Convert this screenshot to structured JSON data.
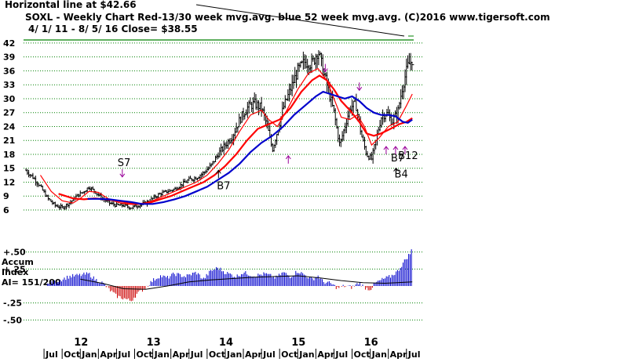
{
  "header": {
    "line1": "Horizontal line at $42.66",
    "line2": "SOXL - Weekly Chart Red-13/30 week mvg.avg. blue 52 week mvg.avg. (C)2016 www.tigersoft.com",
    "line3": "4/ 1/ 11 - 8/ 5/ 16 Close= $38.55"
  },
  "colors": {
    "price": "#000000",
    "ma13": "#ff0000",
    "ma30": "#ff0000",
    "ma52": "#0000cc",
    "grid": "#008000",
    "hline": "#008000",
    "accum_pos": "#0000cc",
    "accum_neg": "#cc0000",
    "buy_arrow": "#000000",
    "sell_arrow": "#990099"
  },
  "chart_data": [
    {
      "type": "ohlc",
      "title": "SOXL - Weekly Chart",
      "ylim": [
        6,
        43
      ],
      "yticks": [
        6,
        9,
        12,
        15,
        18,
        21,
        24,
        27,
        30,
        33,
        36,
        39,
        42
      ],
      "horizontal_line": 42.66,
      "grid": true,
      "x_range": [
        2011.25,
        2016.6
      ],
      "years": [
        "12",
        "13",
        "14",
        "15",
        "16"
      ],
      "months": [
        "Jul",
        "Oct",
        "Jan",
        "Apr",
        "Jul",
        "Oct",
        "Jan",
        "Apr",
        "Jul",
        "Oct",
        "Jan",
        "Apr",
        "Jul",
        "Oct",
        "Jan",
        "Apr",
        "Jul",
        "Oct",
        "Jan",
        "Apr",
        "Jul"
      ],
      "price_points": [
        [
          2011.25,
          14.5
        ],
        [
          2011.35,
          13.0
        ],
        [
          2011.45,
          11.0
        ],
        [
          2011.55,
          8.5
        ],
        [
          2011.65,
          7.0
        ],
        [
          2011.75,
          6.5
        ],
        [
          2011.85,
          7.5
        ],
        [
          2011.95,
          9.0
        ],
        [
          2012.05,
          10.0
        ],
        [
          2012.12,
          11.0
        ],
        [
          2012.2,
          10.0
        ],
        [
          2012.3,
          8.5
        ],
        [
          2012.4,
          7.5
        ],
        [
          2012.5,
          7.0
        ],
        [
          2012.6,
          7.0
        ],
        [
          2012.7,
          6.5
        ],
        [
          2012.8,
          7.0
        ],
        [
          2012.9,
          7.5
        ],
        [
          2013.0,
          8.5
        ],
        [
          2013.1,
          9.5
        ],
        [
          2013.2,
          10.0
        ],
        [
          2013.3,
          10.5
        ],
        [
          2013.4,
          11.5
        ],
        [
          2013.5,
          12.5
        ],
        [
          2013.6,
          13.0
        ],
        [
          2013.7,
          14.0
        ],
        [
          2013.8,
          15.5
        ],
        [
          2013.9,
          18.0
        ],
        [
          2014.0,
          20.0
        ],
        [
          2014.1,
          22.0
        ],
        [
          2014.2,
          25.5
        ],
        [
          2014.3,
          28.0
        ],
        [
          2014.4,
          29.0
        ],
        [
          2014.5,
          28.0
        ],
        [
          2014.58,
          24.0
        ],
        [
          2014.65,
          19.0
        ],
        [
          2014.72,
          23.0
        ],
        [
          2014.8,
          28.0
        ],
        [
          2014.9,
          32.0
        ],
        [
          2015.0,
          36.0
        ],
        [
          2015.1,
          38.0
        ],
        [
          2015.2,
          37.5
        ],
        [
          2015.28,
          40.5
        ],
        [
          2015.35,
          36.0
        ],
        [
          2015.42,
          32.0
        ],
        [
          2015.5,
          27.0
        ],
        [
          2015.58,
          20.0
        ],
        [
          2015.65,
          24.0
        ],
        [
          2015.72,
          28.0
        ],
        [
          2015.8,
          29.0
        ],
        [
          2015.88,
          22.0
        ],
        [
          2015.95,
          18.0
        ],
        [
          2016.02,
          17.0
        ],
        [
          2016.08,
          21.0
        ],
        [
          2016.15,
          26.0
        ],
        [
          2016.22,
          27.0
        ],
        [
          2016.3,
          25.0
        ],
        [
          2016.38,
          27.0
        ],
        [
          2016.45,
          33.0
        ],
        [
          2016.52,
          37.0
        ],
        [
          2016.58,
          38.55
        ]
      ],
      "series": [
        {
          "name": "13 week mvg.avg.",
          "color": "#ff0000",
          "points": [
            [
              2011.45,
              13.5
            ],
            [
              2011.6,
              10.0
            ],
            [
              2011.75,
              8.0
            ],
            [
              2011.9,
              7.5
            ],
            [
              2012.0,
              8.5
            ],
            [
              2012.12,
              10.0
            ],
            [
              2012.25,
              9.8
            ],
            [
              2012.4,
              8.3
            ],
            [
              2012.55,
              7.5
            ],
            [
              2012.7,
              7.2
            ],
            [
              2012.85,
              7.3
            ],
            [
              2013.0,
              8.0
            ],
            [
              2013.15,
              9.0
            ],
            [
              2013.3,
              10.0
            ],
            [
              2013.45,
              11.0
            ],
            [
              2013.6,
              12.0
            ],
            [
              2013.75,
              13.5
            ],
            [
              2013.9,
              16.0
            ],
            [
              2014.05,
              19.0
            ],
            [
              2014.2,
              23.0
            ],
            [
              2014.35,
              26.5
            ],
            [
              2014.5,
              27.5
            ],
            [
              2014.6,
              25.5
            ],
            [
              2014.72,
              24.0
            ],
            [
              2014.85,
              27.5
            ],
            [
              2015.0,
              32.0
            ],
            [
              2015.15,
              35.5
            ],
            [
              2015.28,
              36.5
            ],
            [
              2015.4,
              34.0
            ],
            [
              2015.5,
              30.0
            ],
            [
              2015.6,
              26.0
            ],
            [
              2015.72,
              25.5
            ],
            [
              2015.82,
              26.5
            ],
            [
              2015.92,
              24.0
            ],
            [
              2016.02,
              20.0
            ],
            [
              2016.12,
              21.5
            ],
            [
              2016.25,
              24.0
            ],
            [
              2016.38,
              25.0
            ],
            [
              2016.5,
              28.5
            ],
            [
              2016.58,
              31.0
            ]
          ]
        },
        {
          "name": "30 week mvg.avg.",
          "color": "#ff0000",
          "points": [
            [
              2011.7,
              9.5
            ],
            [
              2011.9,
              8.5
            ],
            [
              2012.05,
              8.3
            ],
            [
              2012.2,
              8.5
            ],
            [
              2012.35,
              8.3
            ],
            [
              2012.5,
              8.0
            ],
            [
              2012.65,
              7.6
            ],
            [
              2012.8,
              7.3
            ],
            [
              2012.95,
              7.5
            ],
            [
              2013.1,
              8.3
            ],
            [
              2013.25,
              9.0
            ],
            [
              2013.4,
              10.0
            ],
            [
              2013.55,
              11.0
            ],
            [
              2013.7,
              12.0
            ],
            [
              2013.85,
              13.5
            ],
            [
              2014.0,
              15.5
            ],
            [
              2014.15,
              18.0
            ],
            [
              2014.3,
              21.0
            ],
            [
              2014.45,
              23.5
            ],
            [
              2014.6,
              24.5
            ],
            [
              2014.75,
              25.5
            ],
            [
              2014.9,
              28.0
            ],
            [
              2015.05,
              31.5
            ],
            [
              2015.2,
              34.0
            ],
            [
              2015.3,
              35.0
            ],
            [
              2015.4,
              34.0
            ],
            [
              2015.5,
              32.0
            ],
            [
              2015.6,
              29.5
            ],
            [
              2015.72,
              27.5
            ],
            [
              2015.85,
              25.0
            ],
            [
              2015.95,
              22.5
            ],
            [
              2016.05,
              22.0
            ],
            [
              2016.15,
              22.5
            ],
            [
              2016.28,
              23.5
            ],
            [
              2016.4,
              24.5
            ],
            [
              2016.5,
              25.0
            ],
            [
              2016.58,
              25.8
            ]
          ]
        },
        {
          "name": "52 week mvg.avg.",
          "color": "#0000cc",
          "points": [
            [
              2012.1,
              8.4
            ],
            [
              2012.25,
              8.4
            ],
            [
              2012.4,
              8.3
            ],
            [
              2012.55,
              8.0
            ],
            [
              2012.7,
              7.7
            ],
            [
              2012.85,
              7.3
            ],
            [
              2013.0,
              7.3
            ],
            [
              2013.15,
              7.7
            ],
            [
              2013.3,
              8.3
            ],
            [
              2013.45,
              9.0
            ],
            [
              2013.6,
              10.0
            ],
            [
              2013.75,
              11.0
            ],
            [
              2013.9,
              12.5
            ],
            [
              2014.05,
              14.0
            ],
            [
              2014.2,
              16.0
            ],
            [
              2014.35,
              18.5
            ],
            [
              2014.5,
              20.5
            ],
            [
              2014.65,
              22.0
            ],
            [
              2014.8,
              24.0
            ],
            [
              2014.95,
              26.5
            ],
            [
              2015.1,
              28.5
            ],
            [
              2015.25,
              30.5
            ],
            [
              2015.35,
              31.5
            ],
            [
              2015.45,
              31.0
            ],
            [
              2015.55,
              30.5
            ],
            [
              2015.65,
              30.0
            ],
            [
              2015.75,
              30.5
            ],
            [
              2015.85,
              29.5
            ],
            [
              2015.95,
              28.0
            ],
            [
              2016.05,
              27.0
            ],
            [
              2016.15,
              26.5
            ],
            [
              2016.25,
              26.5
            ],
            [
              2016.35,
              26.2
            ],
            [
              2016.45,
              25.0
            ],
            [
              2016.52,
              24.8
            ],
            [
              2016.58,
              25.5
            ]
          ]
        }
      ],
      "annotations": [
        {
          "label": "S7",
          "x": 2012.58,
          "y": 15.5,
          "kind": "sell"
        },
        {
          "label": "B7",
          "x": 2013.95,
          "y": 10.5,
          "kind": "buy"
        },
        {
          "label": "B7",
          "x": 2016.35,
          "y": 16.5,
          "kind": "buy"
        },
        {
          "label": "B12",
          "x": 2016.45,
          "y": 17.0,
          "kind": "buy"
        },
        {
          "label": "B4",
          "x": 2016.4,
          "y": 13.0,
          "kind": "buy"
        }
      ],
      "extra_arrows": [
        {
          "x": 2014.87,
          "y": 16.0,
          "kind": "buy",
          "dir": "up"
        },
        {
          "x": 2015.38,
          "y": 37.5,
          "kind": "sell",
          "dir": "down"
        },
        {
          "x": 2015.85,
          "y": 33.5,
          "kind": "sell",
          "dir": "down"
        },
        {
          "x": 2016.22,
          "y": 18.0,
          "kind": "buy",
          "dir": "up"
        },
        {
          "x": 2016.35,
          "y": 18.0,
          "kind": "buy",
          "dir": "up"
        },
        {
          "x": 2016.48,
          "y": 18.0,
          "kind": "buy",
          "dir": "up"
        }
      ]
    },
    {
      "type": "bar",
      "title": "Accum Index",
      "label_lines": [
        "Accum",
        "Index",
        "AI= 151/200"
      ],
      "ylim": [
        -0.6,
        0.6
      ],
      "yticks": [
        0.5,
        0.25,
        -0.25,
        -0.5
      ],
      "ytick_labels": [
        "+.50",
        "+.25",
        "-.25",
        "-.50"
      ],
      "accum_points": [
        [
          2011.25,
          0.12
        ],
        [
          2011.4,
          0.05
        ],
        [
          2011.55,
          0.02
        ],
        [
          2011.7,
          0.08
        ],
        [
          2011.85,
          0.14
        ],
        [
          2012.0,
          0.16
        ],
        [
          2012.12,
          0.18
        ],
        [
          2012.2,
          0.1
        ],
        [
          2012.3,
          0.05
        ],
        [
          2012.4,
          -0.05
        ],
        [
          2012.5,
          -0.15
        ],
        [
          2012.6,
          -0.18
        ],
        [
          2012.7,
          -0.22
        ],
        [
          2012.78,
          -0.12
        ],
        [
          2012.88,
          -0.04
        ],
        [
          2013.0,
          0.08
        ],
        [
          2013.1,
          0.15
        ],
        [
          2013.2,
          0.12
        ],
        [
          2013.3,
          0.18
        ],
        [
          2013.45,
          0.14
        ],
        [
          2013.6,
          0.2
        ],
        [
          2013.7,
          0.1
        ],
        [
          2013.8,
          0.22
        ],
        [
          2013.9,
          0.27
        ],
        [
          2014.0,
          0.2
        ],
        [
          2014.15,
          0.14
        ],
        [
          2014.25,
          0.2
        ],
        [
          2014.4,
          0.15
        ],
        [
          2014.55,
          0.18
        ],
        [
          2014.7,
          0.12
        ],
        [
          2014.8,
          0.2
        ],
        [
          2014.9,
          0.14
        ],
        [
          2015.0,
          0.22
        ],
        [
          2015.1,
          0.16
        ],
        [
          2015.2,
          0.1
        ],
        [
          2015.28,
          0.15
        ],
        [
          2015.35,
          0.06
        ],
        [
          2015.45,
          0.04
        ],
        [
          2015.55,
          -0.03
        ],
        [
          2015.65,
          0.0
        ],
        [
          2015.75,
          -0.02
        ],
        [
          2015.85,
          0.05
        ],
        [
          2015.92,
          -0.02
        ],
        [
          2016.0,
          -0.05
        ],
        [
          2016.08,
          0.05
        ],
        [
          2016.18,
          0.1
        ],
        [
          2016.28,
          0.14
        ],
        [
          2016.38,
          0.22
        ],
        [
          2016.48,
          0.38
        ],
        [
          2016.55,
          0.48
        ],
        [
          2016.58,
          0.55
        ]
      ],
      "ma_points": [
        [
          2012.0,
          0.1
        ],
        [
          2012.3,
          0.04
        ],
        [
          2012.6,
          -0.04
        ],
        [
          2012.9,
          -0.05
        ],
        [
          2013.2,
          0.0
        ],
        [
          2013.5,
          0.06
        ],
        [
          2013.8,
          0.09
        ],
        [
          2014.1,
          0.11
        ],
        [
          2014.4,
          0.13
        ],
        [
          2014.7,
          0.14
        ],
        [
          2015.0,
          0.15
        ],
        [
          2015.3,
          0.12
        ],
        [
          2015.6,
          0.08
        ],
        [
          2015.9,
          0.05
        ],
        [
          2016.2,
          0.04
        ],
        [
          2016.58,
          0.06
        ]
      ]
    }
  ]
}
